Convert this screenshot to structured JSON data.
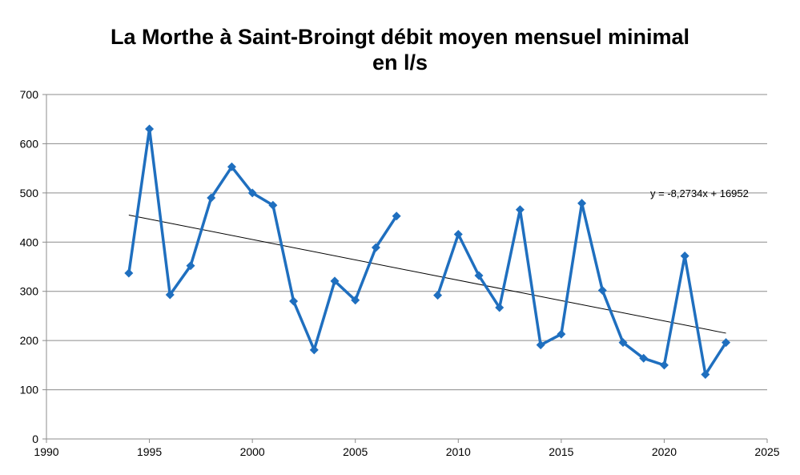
{
  "chart_data": {
    "type": "line",
    "title": [
      "La Morthe à Saint-Broingt débit moyen mensuel minimal",
      "en l/s"
    ],
    "xlabel": "",
    "ylabel": "",
    "xlim": [
      1990,
      2025
    ],
    "ylim": [
      0,
      700
    ],
    "x_ticks": [
      1990,
      1995,
      2000,
      2005,
      2010,
      2015,
      2020,
      2025
    ],
    "y_ticks": [
      0,
      100,
      200,
      300,
      400,
      500,
      600,
      700
    ],
    "grid": "horizontal",
    "legend": "none",
    "series": [
      {
        "color": "#1f6fbf",
        "marker": "diamond",
        "segments": [
          [
            [
              1994,
              337
            ],
            [
              1995,
              630
            ],
            [
              1996,
              293
            ],
            [
              1997,
              352
            ],
            [
              1998,
              490
            ],
            [
              1999,
              553
            ],
            [
              2000,
              500
            ],
            [
              2001,
              475
            ],
            [
              2002,
              280
            ],
            [
              2003,
              181
            ],
            [
              2004,
              321
            ],
            [
              2005,
              282
            ],
            [
              2006,
              389
            ],
            [
              2007,
              453
            ]
          ],
          [
            [
              2009,
              292
            ],
            [
              2010,
              416
            ],
            [
              2011,
              332
            ],
            [
              2012,
              267
            ],
            [
              2013,
              466
            ],
            [
              2014,
              191
            ],
            [
              2015,
              213
            ],
            [
              2016,
              479
            ],
            [
              2017,
              302
            ],
            [
              2018,
              196
            ],
            [
              2019,
              164
            ],
            [
              2020,
              150
            ],
            [
              2021,
              372
            ],
            [
              2022,
              131
            ],
            [
              2023,
              196
            ]
          ]
        ]
      }
    ],
    "trendline": {
      "type": "linear",
      "x_range": [
        1994,
        2023
      ],
      "start": [
        1994,
        455
      ],
      "end": [
        2023,
        215
      ],
      "equation_label": "y = -8,2734x + 16952",
      "color": "#000000"
    }
  }
}
